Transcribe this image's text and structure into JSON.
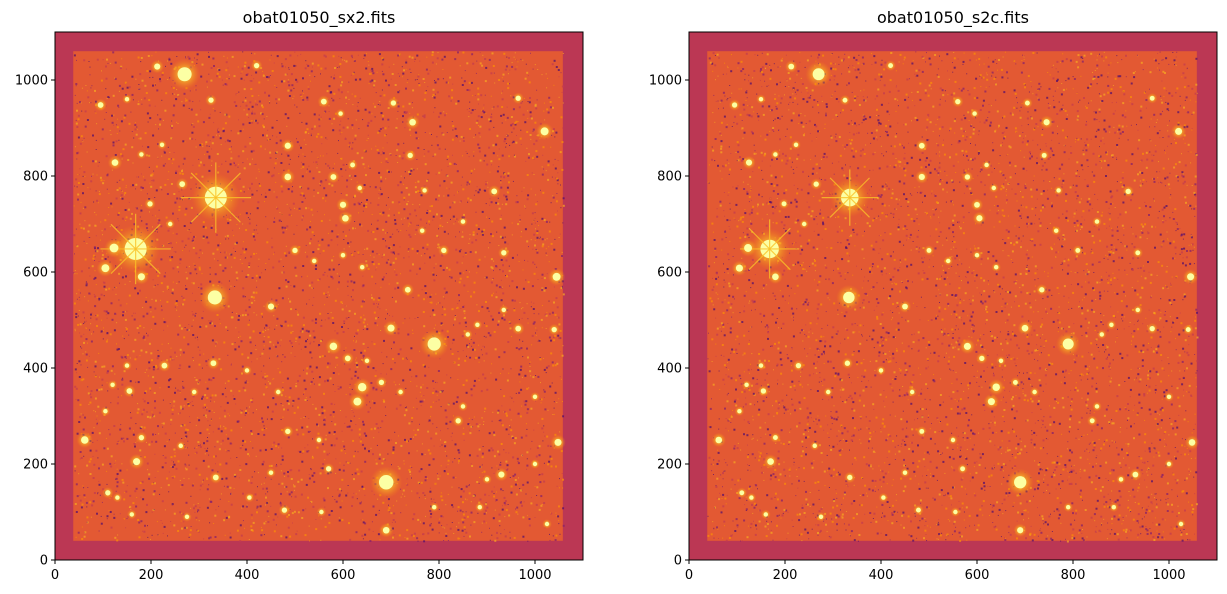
{
  "figure": {
    "panels": [
      {
        "id": "sx2",
        "title": "obat01050_sx2.fits",
        "x_ticks": [
          "0",
          "200",
          "400",
          "600",
          "800",
          "1000"
        ],
        "y_ticks": [
          "0",
          "200",
          "400",
          "600",
          "800",
          "1000"
        ],
        "xlim": [
          0,
          1100
        ],
        "ylim": [
          0,
          1100
        ],
        "stars": [
          [
            270,
            1012,
            3.2
          ],
          [
            213,
            1028,
            1.4
          ],
          [
            420,
            1030,
            1.2
          ],
          [
            95,
            948,
            1.3
          ],
          [
            150,
            960,
            1.0
          ],
          [
            325,
            958,
            1.2
          ],
          [
            560,
            955,
            1.3
          ],
          [
            595,
            930,
            1.0
          ],
          [
            705,
            952,
            1.2
          ],
          [
            745,
            912,
            1.5
          ],
          [
            1020,
            893,
            1.8
          ],
          [
            965,
            962,
            1.2
          ],
          [
            485,
            863,
            1.4
          ],
          [
            125,
            828,
            1.5
          ],
          [
            180,
            845,
            1.0
          ],
          [
            223,
            865,
            1.0
          ],
          [
            335,
            755,
            5.0
          ],
          [
            485,
            798,
            1.5
          ],
          [
            580,
            798,
            1.3
          ],
          [
            635,
            775,
            1.0
          ],
          [
            620,
            823,
            1.1
          ],
          [
            265,
            783,
            1.3
          ],
          [
            740,
            843,
            1.2
          ],
          [
            770,
            770,
            1.0
          ],
          [
            915,
            768,
            1.3
          ],
          [
            198,
            742,
            1.2
          ],
          [
            600,
            740,
            1.4
          ],
          [
            605,
            712,
            1.5
          ],
          [
            850,
            705,
            1.0
          ],
          [
            765,
            686,
            1.0
          ],
          [
            168,
            648,
            5.0
          ],
          [
            123,
            650,
            2.0
          ],
          [
            105,
            608,
            1.8
          ],
          [
            180,
            590,
            1.6
          ],
          [
            240,
            700,
            1.0
          ],
          [
            500,
            645,
            1.2
          ],
          [
            540,
            623,
            1.0
          ],
          [
            600,
            635,
            1.0
          ],
          [
            640,
            610,
            1.0
          ],
          [
            810,
            645,
            1.2
          ],
          [
            1045,
            590,
            1.8
          ],
          [
            935,
            640,
            1.2
          ],
          [
            333,
            547,
            3.2
          ],
          [
            450,
            528,
            1.4
          ],
          [
            735,
            563,
            1.3
          ],
          [
            935,
            521,
            1.0
          ],
          [
            700,
            483,
            1.6
          ],
          [
            880,
            490,
            1.0
          ],
          [
            965,
            482,
            1.3
          ],
          [
            1040,
            480,
            1.2
          ],
          [
            580,
            445,
            1.7
          ],
          [
            610,
            420,
            1.3
          ],
          [
            790,
            450,
            3.0
          ],
          [
            650,
            415,
            1.0
          ],
          [
            860,
            470,
            1.0
          ],
          [
            150,
            405,
            1.0
          ],
          [
            228,
            405,
            1.3
          ],
          [
            330,
            410,
            1.3
          ],
          [
            400,
            395,
            1.0
          ],
          [
            640,
            360,
            1.9
          ],
          [
            630,
            330,
            1.8
          ],
          [
            680,
            370,
            1.2
          ],
          [
            720,
            350,
            1.0
          ],
          [
            850,
            320,
            1.0
          ],
          [
            1000,
            340,
            1.0
          ],
          [
            120,
            365,
            1.0
          ],
          [
            155,
            352,
            1.3
          ],
          [
            290,
            350,
            1.0
          ],
          [
            465,
            350,
            1.0
          ],
          [
            105,
            310,
            1.0
          ],
          [
            62,
            250,
            1.7
          ],
          [
            180,
            255,
            1.2
          ],
          [
            262,
            238,
            1.0
          ],
          [
            485,
            268,
            1.2
          ],
          [
            550,
            250,
            1.0
          ],
          [
            840,
            290,
            1.2
          ],
          [
            1048,
            245,
            1.6
          ],
          [
            170,
            205,
            1.6
          ],
          [
            335,
            172,
            1.3
          ],
          [
            450,
            182,
            1.0
          ],
          [
            570,
            190,
            1.2
          ],
          [
            690,
            162,
            3.3
          ],
          [
            900,
            168,
            1.0
          ],
          [
            930,
            178,
            1.4
          ],
          [
            1000,
            200,
            1.0
          ],
          [
            110,
            140,
            1.2
          ],
          [
            130,
            130,
            1.0
          ],
          [
            405,
            130,
            1.0
          ],
          [
            478,
            104,
            1.2
          ],
          [
            555,
            100,
            1.0
          ],
          [
            790,
            110,
            1.0
          ],
          [
            885,
            110,
            1.0
          ],
          [
            1025,
            75,
            1.0
          ],
          [
            690,
            62,
            1.5
          ],
          [
            160,
            95,
            1.0
          ],
          [
            275,
            90,
            1.0
          ]
        ]
      },
      {
        "id": "s2c",
        "title": "obat01050_s2c.fits",
        "x_ticks": [
          "0",
          "200",
          "400",
          "600",
          "800",
          "1000"
        ],
        "y_ticks": [
          "0",
          "200",
          "400",
          "600",
          "800",
          "1000"
        ],
        "xlim": [
          0,
          1100
        ],
        "ylim": [
          0,
          1100
        ],
        "stars": [
          [
            270,
            1012,
            2.7
          ],
          [
            213,
            1028,
            1.3
          ],
          [
            420,
            1030,
            1.1
          ],
          [
            95,
            948,
            1.2
          ],
          [
            150,
            960,
            1.0
          ],
          [
            325,
            958,
            1.1
          ],
          [
            560,
            955,
            1.2
          ],
          [
            595,
            930,
            1.0
          ],
          [
            705,
            952,
            1.1
          ],
          [
            745,
            912,
            1.4
          ],
          [
            1020,
            893,
            1.6
          ],
          [
            965,
            962,
            1.1
          ],
          [
            485,
            863,
            1.3
          ],
          [
            125,
            828,
            1.4
          ],
          [
            180,
            845,
            1.0
          ],
          [
            223,
            865,
            1.0
          ],
          [
            335,
            755,
            4.0
          ],
          [
            485,
            798,
            1.4
          ],
          [
            580,
            798,
            1.2
          ],
          [
            635,
            775,
            1.0
          ],
          [
            620,
            823,
            1.0
          ],
          [
            265,
            783,
            1.2
          ],
          [
            740,
            843,
            1.1
          ],
          [
            770,
            770,
            1.0
          ],
          [
            915,
            768,
            1.2
          ],
          [
            198,
            742,
            1.1
          ],
          [
            600,
            740,
            1.3
          ],
          [
            605,
            712,
            1.4
          ],
          [
            850,
            705,
            1.0
          ],
          [
            765,
            686,
            1.0
          ],
          [
            168,
            648,
            4.2
          ],
          [
            123,
            650,
            1.8
          ],
          [
            105,
            608,
            1.6
          ],
          [
            180,
            590,
            1.5
          ],
          [
            240,
            700,
            1.0
          ],
          [
            500,
            645,
            1.1
          ],
          [
            540,
            623,
            1.0
          ],
          [
            600,
            635,
            1.0
          ],
          [
            640,
            610,
            1.0
          ],
          [
            810,
            645,
            1.1
          ],
          [
            1045,
            590,
            1.6
          ],
          [
            935,
            640,
            1.1
          ],
          [
            333,
            547,
            2.6
          ],
          [
            450,
            528,
            1.3
          ],
          [
            735,
            563,
            1.2
          ],
          [
            935,
            521,
            1.0
          ],
          [
            700,
            483,
            1.5
          ],
          [
            880,
            490,
            1.0
          ],
          [
            965,
            482,
            1.2
          ],
          [
            1040,
            480,
            1.1
          ],
          [
            580,
            445,
            1.6
          ],
          [
            610,
            420,
            1.2
          ],
          [
            790,
            450,
            2.5
          ],
          [
            650,
            415,
            1.0
          ],
          [
            860,
            470,
            1.0
          ],
          [
            150,
            405,
            1.0
          ],
          [
            228,
            405,
            1.2
          ],
          [
            330,
            410,
            1.2
          ],
          [
            400,
            395,
            1.0
          ],
          [
            640,
            360,
            1.7
          ],
          [
            630,
            330,
            1.6
          ],
          [
            680,
            370,
            1.1
          ],
          [
            720,
            350,
            1.0
          ],
          [
            850,
            320,
            1.0
          ],
          [
            1000,
            340,
            1.0
          ],
          [
            120,
            365,
            1.0
          ],
          [
            155,
            352,
            1.2
          ],
          [
            290,
            350,
            1.0
          ],
          [
            465,
            350,
            1.0
          ],
          [
            105,
            310,
            1.0
          ],
          [
            62,
            250,
            1.5
          ],
          [
            180,
            255,
            1.1
          ],
          [
            262,
            238,
            1.0
          ],
          [
            485,
            268,
            1.1
          ],
          [
            550,
            250,
            1.0
          ],
          [
            840,
            290,
            1.1
          ],
          [
            1048,
            245,
            1.5
          ],
          [
            170,
            205,
            1.5
          ],
          [
            335,
            172,
            1.2
          ],
          [
            450,
            182,
            1.0
          ],
          [
            570,
            190,
            1.1
          ],
          [
            690,
            162,
            2.8
          ],
          [
            900,
            168,
            1.0
          ],
          [
            930,
            178,
            1.3
          ],
          [
            1000,
            200,
            1.0
          ],
          [
            110,
            140,
            1.1
          ],
          [
            130,
            130,
            1.0
          ],
          [
            405,
            130,
            1.0
          ],
          [
            478,
            104,
            1.1
          ],
          [
            555,
            100,
            1.0
          ],
          [
            790,
            110,
            1.0
          ],
          [
            885,
            110,
            1.0
          ],
          [
            1025,
            75,
            1.0
          ],
          [
            690,
            62,
            1.4
          ],
          [
            160,
            95,
            1.0
          ],
          [
            275,
            90,
            1.0
          ]
        ]
      }
    ],
    "colors": {
      "border_fill": "#bb3754",
      "noise_low": "#57106e",
      "noise_mid": "#e35933",
      "noise_high": "#f98e09",
      "star_core": "#fcffa4",
      "star_glow": "#fac228"
    }
  }
}
